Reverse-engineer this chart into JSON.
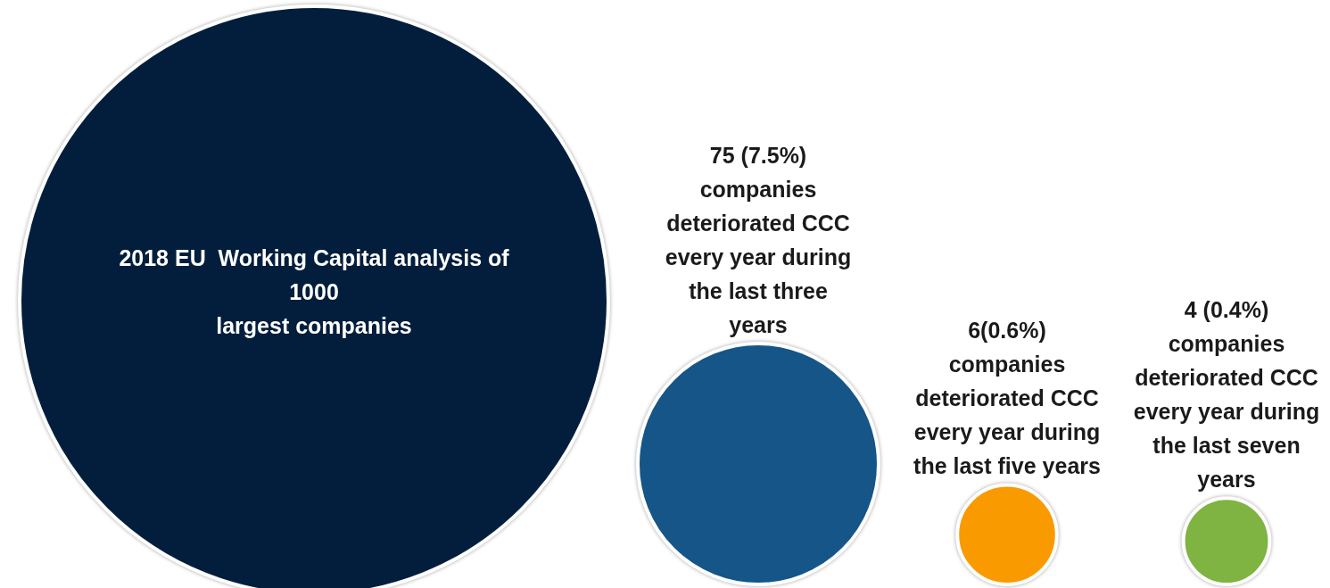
{
  "chart_data": {
    "type": "other",
    "title": "2018 EU  Working Capital analysis of\n1000\nlargest companies",
    "categories": [
      "companies\ndeteriorated CCC\nevery year during\nthe last three\nyears",
      "companies\ndeteriorated CCC\nevery year during\nthe last five years",
      "companies\ndeteriorated CCC\nevery year during\nthe last seven\nyears"
    ],
    "values": [
      75,
      6,
      4
    ],
    "value_labels": [
      "75 (7.5%)",
      "6(0.6%)",
      "4 (0.4%)"
    ],
    "colors": [
      "#155587",
      "#f99a00",
      "#7fb342"
    ]
  }
}
